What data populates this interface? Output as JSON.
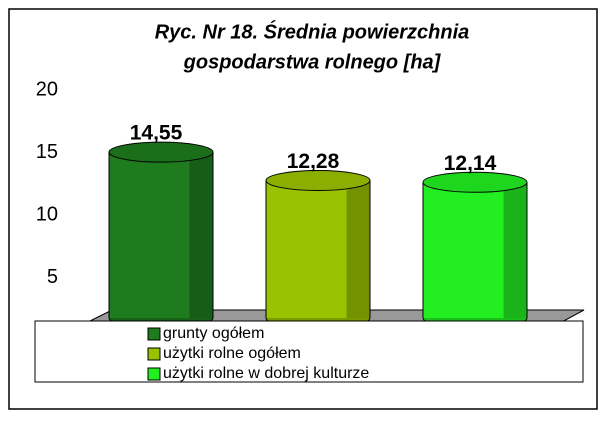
{
  "chart_data": {
    "type": "bar3d",
    "title": [
      "Ryc. Nr 18. Średnia powierzchnia",
      "gospodarstwa rolnego [ha]"
    ],
    "series": [
      {
        "name": "grunty ogółem",
        "color": "#1e7b1e",
        "values": [
          14.55
        ],
        "value_labels": [
          "14,55"
        ]
      },
      {
        "name": "użytki rolne ogółem",
        "color": "#99c200",
        "values": [
          12.28
        ],
        "value_labels": [
          "12,28"
        ]
      },
      {
        "name": "użytki rolne w dobrej kulturze",
        "color": "#22ee22",
        "values": [
          12.14
        ],
        "value_labels": [
          "12,14"
        ]
      }
    ],
    "ylim": [
      0,
      20
    ],
    "yticks": [
      5,
      10,
      15,
      20
    ],
    "grid": false,
    "legend": "bottom"
  }
}
